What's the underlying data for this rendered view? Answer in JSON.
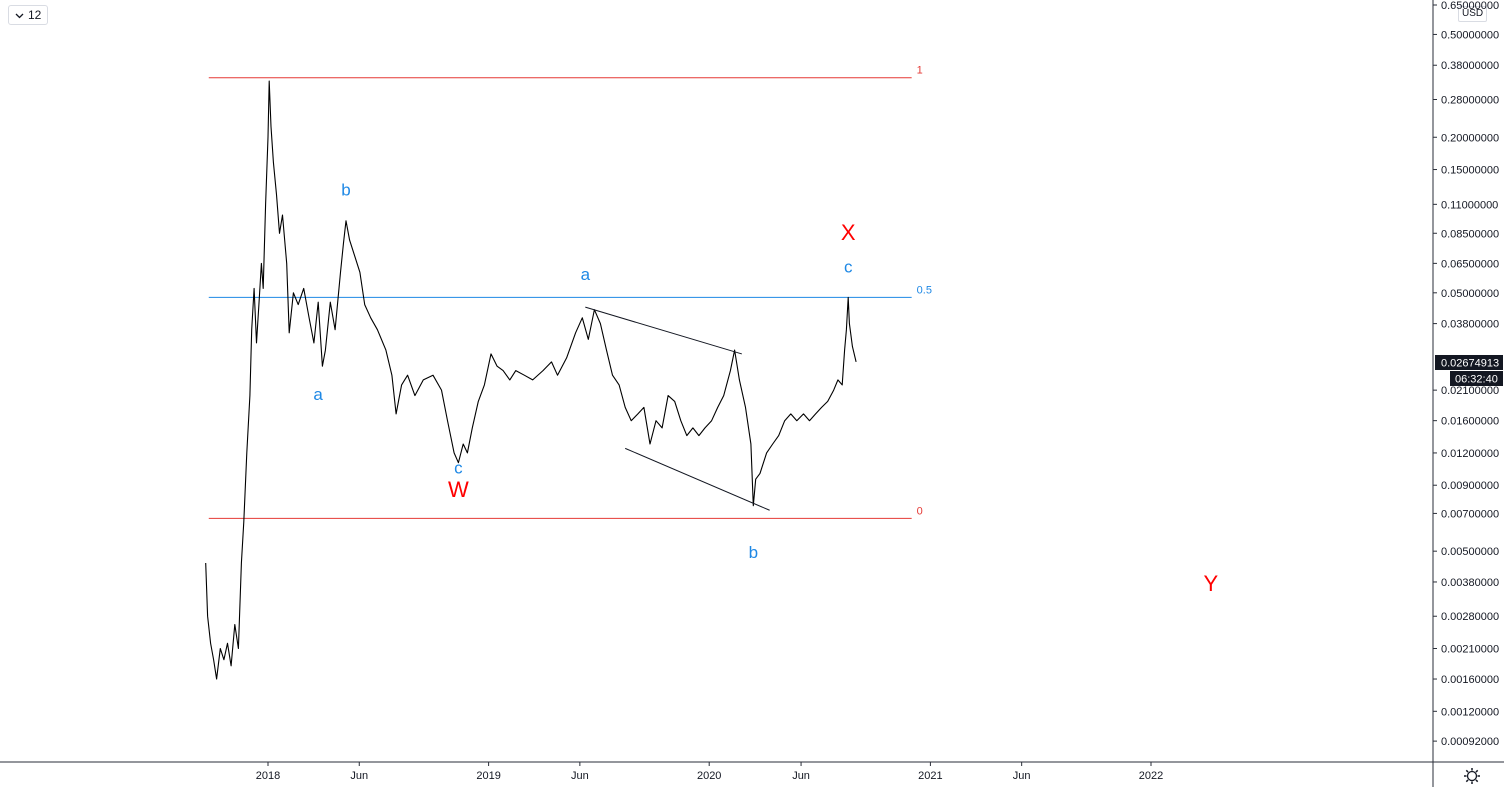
{
  "toolbar": {
    "interval_label": "12",
    "currency_label": "USD"
  },
  "icons": {
    "interval_menu": "chevron-down-icon",
    "settings": "gear-icon"
  },
  "colors": {
    "fib_line": "#e53935",
    "mid_line": "#1e88e5",
    "wave_label_blue": "#1e88e5",
    "wave_label_red": "#ff0000",
    "price": "#000000",
    "price_badge": "#131722"
  },
  "price_badge": {
    "value": "0.02674913",
    "countdown": "06:32:40"
  },
  "chart_data": {
    "type": "line",
    "title": "",
    "y_scale": "log",
    "ylim": [
      0.00085,
      0.65
    ],
    "xlim": [
      "2017-09-18",
      "2022-12-31"
    ],
    "x_ticks": [
      {
        "date": "2018-01-01",
        "label": "2018"
      },
      {
        "date": "2018-06-01",
        "label": "Jun"
      },
      {
        "date": "2019-01-01",
        "label": "2019"
      },
      {
        "date": "2019-06-01",
        "label": "Jun"
      },
      {
        "date": "2020-01-01",
        "label": "2020"
      },
      {
        "date": "2020-06-01",
        "label": "Jun"
      },
      {
        "date": "2021-01-01",
        "label": "2021"
      },
      {
        "date": "2021-06-01",
        "label": "Jun"
      },
      {
        "date": "2022-01-01",
        "label": "2022"
      }
    ],
    "y_ticks": [
      "0.65000000",
      "0.50000000",
      "0.38000000",
      "0.28000000",
      "0.20000000",
      "0.15000000",
      "0.11000000",
      "0.08500000",
      "0.06500000",
      "0.05000000",
      "0.03800000",
      "0.02100000",
      "0.01600000",
      "0.01200000",
      "0.00900000",
      "0.00700000",
      "0.00500000",
      "0.00380000",
      "0.00280000",
      "0.00210000",
      "0.00160000",
      "0.00120000",
      "0.00092000"
    ],
    "series": [
      {
        "points": [
          [
            "2017-09-20",
            0.0045
          ],
          [
            "2017-09-23",
            0.0028
          ],
          [
            "2017-09-28",
            0.0022
          ],
          [
            "2017-10-03",
            0.0019
          ],
          [
            "2017-10-08",
            0.0016
          ],
          [
            "2017-10-14",
            0.0021
          ],
          [
            "2017-10-20",
            0.0019
          ],
          [
            "2017-10-26",
            0.0022
          ],
          [
            "2017-11-01",
            0.0018
          ],
          [
            "2017-11-07",
            0.0026
          ],
          [
            "2017-11-13",
            0.0021
          ],
          [
            "2017-11-18",
            0.0045
          ],
          [
            "2017-11-22",
            0.0065
          ],
          [
            "2017-11-27",
            0.012
          ],
          [
            "2017-12-02",
            0.02
          ],
          [
            "2017-12-05",
            0.036
          ],
          [
            "2017-12-09",
            0.052
          ],
          [
            "2017-12-13",
            0.032
          ],
          [
            "2017-12-17",
            0.045
          ],
          [
            "2017-12-21",
            0.065
          ],
          [
            "2017-12-24",
            0.052
          ],
          [
            "2017-12-28",
            0.11
          ],
          [
            "2018-01-01",
            0.2
          ],
          [
            "2018-01-03",
            0.33
          ],
          [
            "2018-01-06",
            0.22
          ],
          [
            "2018-01-10",
            0.16
          ],
          [
            "2018-01-15",
            0.12
          ],
          [
            "2018-01-20",
            0.085
          ],
          [
            "2018-01-25",
            0.1
          ],
          [
            "2018-02-01",
            0.065
          ],
          [
            "2018-02-05",
            0.035
          ],
          [
            "2018-02-12",
            0.05
          ],
          [
            "2018-02-20",
            0.045
          ],
          [
            "2018-03-01",
            0.052
          ],
          [
            "2018-03-10",
            0.04
          ],
          [
            "2018-03-18",
            0.032
          ],
          [
            "2018-03-25",
            0.046
          ],
          [
            "2018-04-01",
            0.026
          ],
          [
            "2018-04-06",
            0.03
          ],
          [
            "2018-04-14",
            0.046
          ],
          [
            "2018-04-22",
            0.036
          ],
          [
            "2018-05-01",
            0.06
          ],
          [
            "2018-05-06",
            0.078
          ],
          [
            "2018-05-10",
            0.095
          ],
          [
            "2018-05-16",
            0.08
          ],
          [
            "2018-05-24",
            0.07
          ],
          [
            "2018-06-02",
            0.06
          ],
          [
            "2018-06-10",
            0.045
          ],
          [
            "2018-06-20",
            0.04
          ],
          [
            "2018-07-01",
            0.036
          ],
          [
            "2018-07-15",
            0.03
          ],
          [
            "2018-07-25",
            0.024
          ],
          [
            "2018-08-01",
            0.017
          ],
          [
            "2018-08-10",
            0.022
          ],
          [
            "2018-08-20",
            0.024
          ],
          [
            "2018-09-01",
            0.02
          ],
          [
            "2018-09-15",
            0.023
          ],
          [
            "2018-10-01",
            0.024
          ],
          [
            "2018-10-15",
            0.021
          ],
          [
            "2018-10-25",
            0.016
          ],
          [
            "2018-11-05",
            0.012
          ],
          [
            "2018-11-12",
            0.011
          ],
          [
            "2018-11-20",
            0.013
          ],
          [
            "2018-11-27",
            0.012
          ],
          [
            "2018-12-05",
            0.015
          ],
          [
            "2018-12-15",
            0.019
          ],
          [
            "2018-12-25",
            0.022
          ],
          [
            "2019-01-05",
            0.029
          ],
          [
            "2019-01-15",
            0.026
          ],
          [
            "2019-01-25",
            0.025
          ],
          [
            "2019-02-05",
            0.023
          ],
          [
            "2019-02-15",
            0.025
          ],
          [
            "2019-03-01",
            0.024
          ],
          [
            "2019-03-15",
            0.023
          ],
          [
            "2019-04-01",
            0.025
          ],
          [
            "2019-04-15",
            0.027
          ],
          [
            "2019-04-25",
            0.024
          ],
          [
            "2019-05-10",
            0.028
          ],
          [
            "2019-05-25",
            0.035
          ],
          [
            "2019-06-05",
            0.04
          ],
          [
            "2019-06-15",
            0.033
          ],
          [
            "2019-06-25",
            0.043
          ],
          [
            "2019-07-05",
            0.038
          ],
          [
            "2019-07-15",
            0.03
          ],
          [
            "2019-07-25",
            0.024
          ],
          [
            "2019-08-05",
            0.022
          ],
          [
            "2019-08-15",
            0.018
          ],
          [
            "2019-08-25",
            0.016
          ],
          [
            "2019-09-05",
            0.017
          ],
          [
            "2019-09-15",
            0.018
          ],
          [
            "2019-09-25",
            0.013
          ],
          [
            "2019-10-05",
            0.016
          ],
          [
            "2019-10-15",
            0.015
          ],
          [
            "2019-10-25",
            0.02
          ],
          [
            "2019-11-05",
            0.019
          ],
          [
            "2019-11-15",
            0.016
          ],
          [
            "2019-11-25",
            0.014
          ],
          [
            "2019-12-05",
            0.015
          ],
          [
            "2019-12-15",
            0.014
          ],
          [
            "2019-12-25",
            0.015
          ],
          [
            "2020-01-05",
            0.016
          ],
          [
            "2020-01-15",
            0.018
          ],
          [
            "2020-01-25",
            0.02
          ],
          [
            "2020-02-05",
            0.025
          ],
          [
            "2020-02-12",
            0.03
          ],
          [
            "2020-02-20",
            0.023
          ],
          [
            "2020-03-01",
            0.018
          ],
          [
            "2020-03-10",
            0.013
          ],
          [
            "2020-03-14",
            0.0075
          ],
          [
            "2020-03-18",
            0.0095
          ],
          [
            "2020-03-25",
            0.01
          ],
          [
            "2020-04-05",
            0.012
          ],
          [
            "2020-04-15",
            0.013
          ],
          [
            "2020-04-25",
            0.014
          ],
          [
            "2020-05-05",
            0.016
          ],
          [
            "2020-05-15",
            0.017
          ],
          [
            "2020-05-25",
            0.016
          ],
          [
            "2020-06-05",
            0.017
          ],
          [
            "2020-06-15",
            0.016
          ],
          [
            "2020-06-25",
            0.017
          ],
          [
            "2020-07-05",
            0.018
          ],
          [
            "2020-07-15",
            0.019
          ],
          [
            "2020-07-25",
            0.021
          ],
          [
            "2020-08-01",
            0.023
          ],
          [
            "2020-08-08",
            0.022
          ],
          [
            "2020-08-12",
            0.03
          ],
          [
            "2020-08-15",
            0.036
          ],
          [
            "2020-08-18",
            0.048
          ],
          [
            "2020-08-20",
            0.038
          ],
          [
            "2020-08-25",
            0.031
          ],
          [
            "2020-08-31",
            0.027
          ]
        ]
      }
    ],
    "fib_levels": [
      {
        "label": "1",
        "value": 0.34
      },
      {
        "label": "0.5",
        "value": 0.048
      },
      {
        "label": "0",
        "value": 0.0067
      }
    ],
    "trend_lines": [
      {
        "from": [
          "2019-06-10",
          0.044
        ],
        "to": [
          "2020-02-24",
          0.029
        ]
      },
      {
        "from": [
          "2019-08-15",
          0.0125
        ],
        "to": [
          "2020-04-10",
          0.0072
        ]
      }
    ],
    "annotations": [
      {
        "text": "b",
        "date": "2018-05-10",
        "price": 0.119,
        "color": "blue"
      },
      {
        "text": "a",
        "date": "2018-03-25",
        "price": 0.0192,
        "color": "blue"
      },
      {
        "text": "c",
        "date": "2018-11-12",
        "price": 0.01,
        "color": "blue"
      },
      {
        "text": "W",
        "date": "2018-11-12",
        "price": 0.0081,
        "color": "red"
      },
      {
        "text": "a",
        "date": "2019-06-10",
        "price": 0.056,
        "color": "blue"
      },
      {
        "text": "b",
        "date": "2020-03-14",
        "price": 0.0047,
        "color": "blue"
      },
      {
        "text": "c",
        "date": "2020-08-18",
        "price": 0.06,
        "color": "blue"
      },
      {
        "text": "X",
        "date": "2020-08-18",
        "price": 0.08,
        "color": "red"
      },
      {
        "text": "Y",
        "date": "2022-04-10",
        "price": 0.0035,
        "color": "red"
      }
    ]
  }
}
